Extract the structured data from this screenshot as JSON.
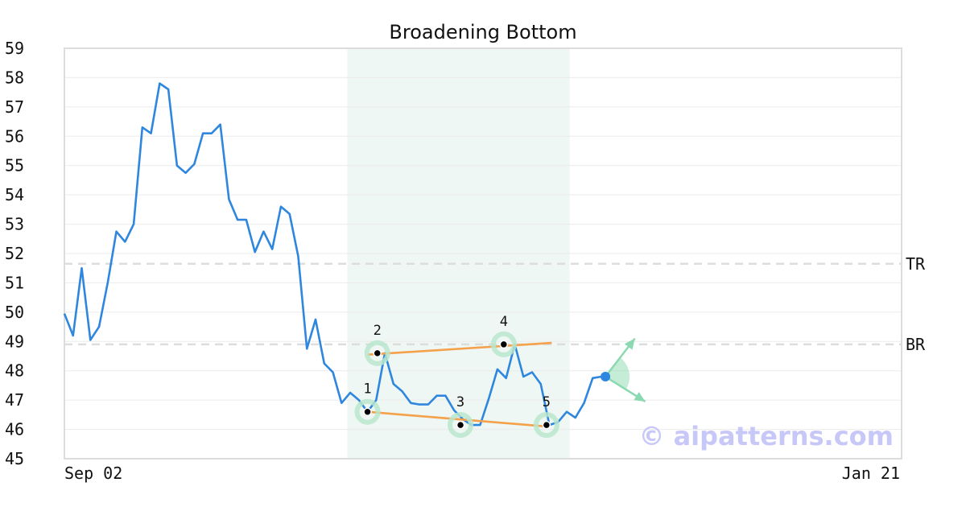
{
  "chart_data": {
    "type": "line",
    "title": "Broadening Bottom",
    "xlabel": "",
    "ylabel": "",
    "x_tick_labels": [
      "Sep 02",
      "Jan 21"
    ],
    "y_ticks": [
      45,
      46,
      47,
      48,
      49,
      50,
      51,
      52,
      53,
      54,
      55,
      56,
      57,
      58,
      59
    ],
    "ylim": [
      45,
      59
    ],
    "xlim": [
      0,
      145
    ],
    "grid": "horizontal",
    "colors": {
      "price_line": "#2e86de",
      "trend_lines": "#f5a04a",
      "pattern_zone": "#eef7f3",
      "pivot_halo": "#b8e6cc",
      "reference_lines": "#dddddd",
      "last_point": "#2e86de",
      "projection": "#8ad9b0",
      "watermark": "#c8c8f8"
    },
    "series": [
      {
        "values": [
          49.95,
          49.2,
          51.5,
          49.05,
          49.5,
          51.0,
          52.75,
          52.4,
          53.0,
          56.3,
          56.1,
          57.8,
          57.6,
          55.0,
          54.75,
          55.05,
          56.1,
          56.1,
          56.4,
          53.85,
          53.15,
          53.15,
          52.05,
          52.75,
          52.15,
          53.6,
          53.35,
          51.9,
          48.75,
          49.75,
          48.25,
          47.95,
          46.9,
          47.25,
          47.0,
          46.6,
          47.0,
          48.6,
          47.55,
          47.3,
          46.9,
          46.85,
          46.85,
          47.15,
          47.15,
          46.65,
          46.35,
          46.15,
          46.15,
          47.05,
          48.05,
          47.75,
          48.9,
          47.8,
          47.95,
          47.55,
          46.15,
          46.25,
          46.6,
          46.4,
          46.9,
          47.75,
          47.8
        ]
      }
    ],
    "pattern_region": {
      "x_start": 49,
      "x_end": 87.5
    },
    "pivots": [
      {
        "label": "1",
        "x": 52.5,
        "y": 46.6
      },
      {
        "label": "2",
        "x": 54.2,
        "y": 48.6
      },
      {
        "label": "3",
        "x": 68.6,
        "y": 46.15
      },
      {
        "label": "4",
        "x": 76.1,
        "y": 48.9
      },
      {
        "label": "5",
        "x": 83.5,
        "y": 46.15
      }
    ],
    "trend_lines": [
      {
        "x1": 52.5,
        "y1": 48.55,
        "x2": 84.4,
        "y2": 48.95
      },
      {
        "x1": 52.5,
        "y1": 46.6,
        "x2": 83.5,
        "y2": 46.1
      }
    ],
    "reference_lines": [
      {
        "label": "TR",
        "y": 51.65
      },
      {
        "label": "BR",
        "y": 48.9
      }
    ],
    "last_point": {
      "x": 93.7,
      "y": 47.8
    },
    "projection": {
      "up_to": {
        "x": 98.8,
        "y": 49.1
      },
      "down_to": {
        "x": 100.6,
        "y": 46.95
      }
    },
    "watermark": "© aipatterns.com"
  }
}
